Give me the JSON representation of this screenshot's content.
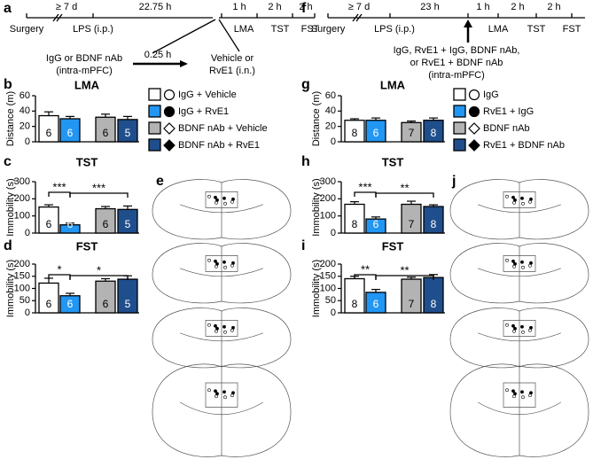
{
  "panels": {
    "a": "a",
    "b": "b",
    "c": "c",
    "d": "d",
    "e": "e",
    "f": "f",
    "g": "g",
    "h": "h",
    "i": "i",
    "j": "j"
  },
  "timeline_left": {
    "intervals": [
      "≥ 7 d",
      "22.75 h",
      "1 h",
      "2 h",
      "2 h"
    ],
    "events": [
      "Surgery",
      "LPS (i.p.)",
      "LMA",
      "TST",
      "FST"
    ],
    "treatment_1": [
      "IgG or BDNF nAb",
      "(intra-mPFC)"
    ],
    "delay": "0.25 h",
    "treatment_2": [
      "Vehicle or",
      "RvE1 (i.n.)"
    ]
  },
  "timeline_right": {
    "intervals": [
      "≥ 7 d",
      "23 h",
      "1 h",
      "2 h",
      "2 h"
    ],
    "events": [
      "Surgery",
      "LPS (i.p.)",
      "LMA",
      "TST",
      "FST"
    ],
    "treatment": [
      "IgG, RvE1 + IgG, BDNF nAb,",
      "or RvE1 + BDNF nAb",
      "(intra-mPFC)"
    ]
  },
  "legend_left": [
    "IgG + Vehicle",
    "IgG + RvE1",
    "BDNF nAb + Vehicle",
    "BDNF nAb + RvE1"
  ],
  "legend_right": [
    "IgG",
    "RvE1 + IgG",
    "BDNF nAb",
    "RvE1 + BDNF nAb"
  ],
  "chart_data": [
    {
      "type": "bar",
      "panel": "b",
      "title": "LMA",
      "ylabel": "Distance (m)",
      "values": [
        34,
        30,
        32,
        29
      ],
      "errors": [
        5,
        3,
        4,
        4
      ],
      "n": [
        6,
        6,
        6,
        5
      ],
      "colors": [
        "#ffffff",
        "#2196f3",
        "#b3b3b3",
        "#1f4e8c"
      ],
      "ylim": [
        0,
        60
      ],
      "yticks": [
        0,
        20,
        40,
        60
      ],
      "annotations": []
    },
    {
      "type": "bar",
      "panel": "c",
      "title": "TST",
      "ylabel": "Immobility (s)",
      "values": [
        152,
        48,
        142,
        138
      ],
      "errors": [
        13,
        10,
        13,
        20
      ],
      "n": [
        6,
        6,
        6,
        5
      ],
      "colors": [
        "#ffffff",
        "#2196f3",
        "#b3b3b3",
        "#1f4e8c"
      ],
      "ylim": [
        0,
        300
      ],
      "yticks": [
        0,
        100,
        200,
        300
      ],
      "annotations": [
        "***",
        "***"
      ]
    },
    {
      "type": "bar",
      "panel": "d",
      "title": "FST",
      "ylabel": "Immobility (s)",
      "values": [
        122,
        70,
        130,
        138
      ],
      "errors": [
        20,
        10,
        10,
        14
      ],
      "n": [
        6,
        6,
        6,
        5
      ],
      "colors": [
        "#ffffff",
        "#2196f3",
        "#b3b3b3",
        "#1f4e8c"
      ],
      "ylim": [
        0,
        200
      ],
      "yticks": [
        0,
        50,
        100,
        150,
        200
      ],
      "annotations": [
        "*",
        "*"
      ]
    },
    {
      "type": "bar",
      "panel": "g",
      "title": "LMA",
      "ylabel": "Distance (m)",
      "values": [
        28,
        28,
        25,
        28
      ],
      "errors": [
        2,
        3,
        2,
        3
      ],
      "n": [
        8,
        6,
        7,
        8
      ],
      "colors": [
        "#ffffff",
        "#2196f3",
        "#b3b3b3",
        "#1f4e8c"
      ],
      "ylim": [
        0,
        60
      ],
      "yticks": [
        0,
        20,
        40,
        60
      ],
      "annotations": []
    },
    {
      "type": "bar",
      "panel": "h",
      "title": "TST",
      "ylabel": "Immobility (s)",
      "values": [
        168,
        82,
        168,
        155
      ],
      "errors": [
        15,
        12,
        18,
        10
      ],
      "n": [
        8,
        6,
        7,
        8
      ],
      "colors": [
        "#ffffff",
        "#2196f3",
        "#b3b3b3",
        "#1f4e8c"
      ],
      "ylim": [
        0,
        300
      ],
      "yticks": [
        0,
        100,
        200,
        300
      ],
      "annotations": [
        "***",
        "**"
      ]
    },
    {
      "type": "bar",
      "panel": "i",
      "title": "FST",
      "ylabel": "Immobility (s)",
      "values": [
        140,
        84,
        138,
        145
      ],
      "errors": [
        10,
        12,
        8,
        12
      ],
      "n": [
        8,
        6,
        7,
        8
      ],
      "colors": [
        "#ffffff",
        "#2196f3",
        "#b3b3b3",
        "#1f4e8c"
      ],
      "ylim": [
        0,
        200
      ],
      "yticks": [
        0,
        50,
        100,
        150,
        200
      ],
      "annotations": [
        "**",
        "**"
      ]
    }
  ]
}
